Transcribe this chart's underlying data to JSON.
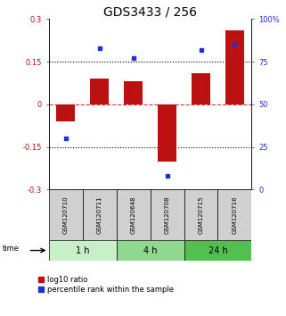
{
  "title": "GDS3433 / 256",
  "samples": [
    "GSM120710",
    "GSM120711",
    "GSM120648",
    "GSM120708",
    "GSM120715",
    "GSM120716"
  ],
  "log10_ratio": [
    -0.06,
    0.09,
    0.08,
    -0.2,
    0.11,
    0.26
  ],
  "percentile_rank": [
    30,
    83,
    77,
    8,
    82,
    85
  ],
  "time_groups": [
    {
      "label": "1 h",
      "color": "#c8f0c8",
      "start": 0,
      "end": 2
    },
    {
      "label": "4 h",
      "color": "#90d890",
      "start": 2,
      "end": 4
    },
    {
      "label": "24 h",
      "color": "#50c050",
      "start": 4,
      "end": 6
    }
  ],
  "ylim_left": [
    -0.3,
    0.3
  ],
  "bar_color": "#bb1111",
  "dot_color": "#2233cc",
  "title_fontsize": 10,
  "tick_fontsize": 6,
  "sample_fontsize": 5,
  "time_fontsize": 7,
  "legend_fontsize": 6,
  "left_yticks": [
    -0.3,
    -0.15,
    0,
    0.15,
    0.3
  ],
  "left_yticklabels": [
    "-0.3",
    "-0.15",
    "0",
    "0.15",
    "0.3"
  ],
  "right_ytick_vals": [
    0,
    25,
    50,
    75,
    100
  ],
  "right_ytick_labels": [
    "0",
    "25",
    "50",
    "75",
    "100%"
  ]
}
